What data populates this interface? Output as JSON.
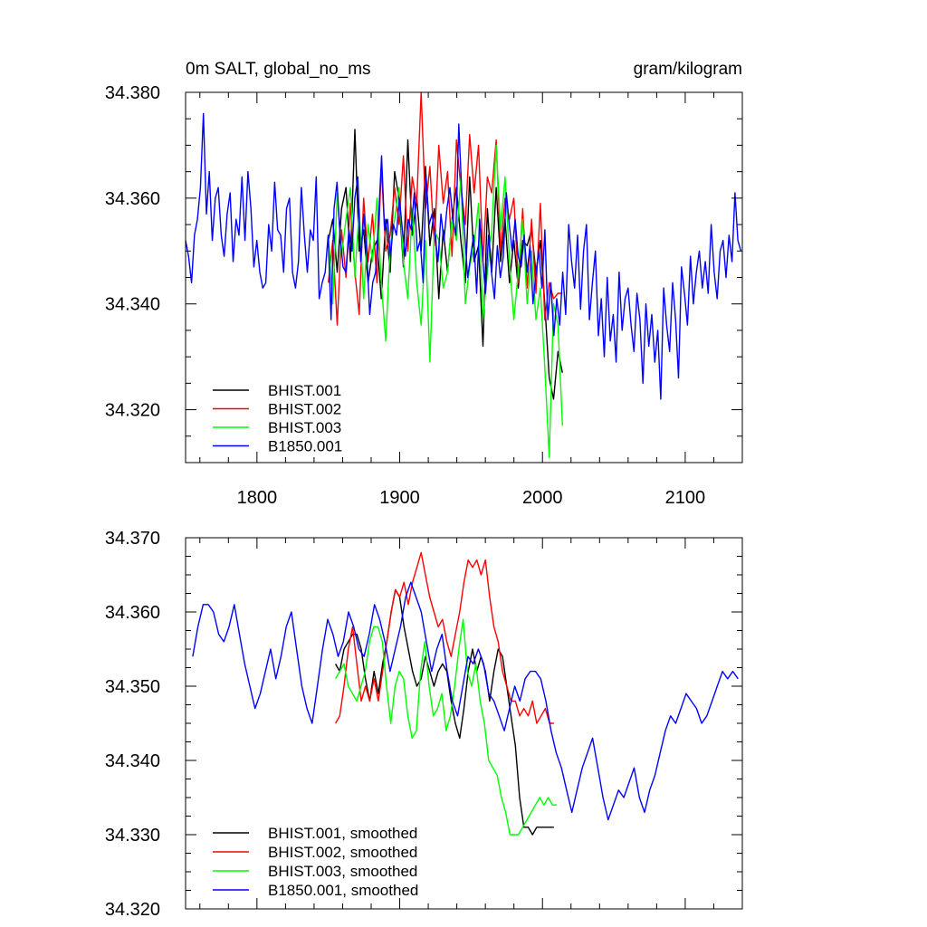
{
  "chart_data": [
    {
      "type": "line",
      "title": "0m SALT, global_no_ms",
      "units": "gram/kilogram",
      "xlim": [
        1750,
        2140
      ],
      "ylim": [
        34.31,
        34.38
      ],
      "xticks": [
        1800,
        1900,
        2000,
        2100
      ],
      "xtick_labels": [
        "1800",
        "1900",
        "2000",
        "2100"
      ],
      "yticks": [
        34.32,
        34.34,
        34.36,
        34.38
      ],
      "ytick_labels": [
        "34.320",
        "34.340",
        "34.360",
        "34.380"
      ],
      "legend_position": "bottom-left",
      "series": [
        {
          "name": "BHIST.001",
          "color": "#000000",
          "x_range": [
            1850,
            2014
          ],
          "step": 4,
          "values": [
            34.352,
            34.356,
            34.346,
            34.358,
            34.362,
            34.348,
            34.373,
            34.35,
            34.354,
            34.344,
            34.35,
            34.352,
            34.341,
            34.356,
            34.346,
            34.365,
            34.36,
            34.347,
            34.371,
            34.353,
            34.36,
            34.35,
            34.366,
            34.351,
            34.358,
            34.341,
            34.354,
            34.346,
            34.356,
            34.362,
            34.352,
            34.344,
            34.364,
            34.348,
            34.351,
            34.332,
            34.358,
            34.346,
            34.362,
            34.348,
            34.356,
            34.344,
            34.352,
            34.343,
            34.352,
            34.351,
            34.354,
            34.346,
            34.352,
            34.34,
            34.326,
            34.322,
            34.331,
            34.327
          ]
        },
        {
          "name": "BHIST.002",
          "color": "#ff0000",
          "x_range": [
            1850,
            2014
          ],
          "step": 4,
          "values": [
            34.344,
            34.352,
            34.336,
            34.354,
            34.345,
            34.359,
            34.346,
            34.338,
            34.36,
            34.348,
            34.357,
            34.344,
            34.366,
            34.35,
            34.353,
            34.362,
            34.355,
            34.368,
            34.35,
            34.364,
            34.359,
            34.38,
            34.358,
            34.366,
            34.351,
            34.37,
            34.359,
            34.365,
            34.349,
            34.371,
            34.362,
            34.355,
            34.372,
            34.361,
            34.37,
            34.348,
            34.364,
            34.361,
            34.371,
            34.35,
            34.36,
            34.356,
            34.36,
            34.344,
            34.358,
            34.343,
            34.356,
            34.342,
            34.359,
            34.337,
            34.344,
            34.341,
            34.342,
            34.342
          ]
        },
        {
          "name": "BHIST.003",
          "color": "#00ff00",
          "x_range": [
            1850,
            2014
          ],
          "step": 4,
          "values": [
            34.353,
            34.34,
            34.361,
            34.349,
            34.356,
            34.362,
            34.345,
            34.358,
            34.341,
            34.355,
            34.348,
            34.36,
            34.344,
            34.333,
            34.351,
            34.356,
            34.362,
            34.348,
            34.341,
            34.358,
            34.344,
            34.336,
            34.352,
            34.329,
            34.354,
            34.352,
            34.343,
            34.346,
            34.356,
            34.352,
            34.364,
            34.34,
            34.347,
            34.351,
            34.359,
            34.337,
            34.346,
            34.354,
            34.37,
            34.354,
            34.364,
            34.348,
            34.337,
            34.346,
            34.356,
            34.34,
            34.35,
            34.337,
            34.343,
            34.328,
            34.311,
            34.34,
            34.336,
            34.317
          ]
        },
        {
          "name": "B1850.001",
          "color": "#0000ff",
          "x_range": [
            1750,
            2139
          ],
          "step": 3,
          "values": [
            34.352,
            34.349,
            34.344,
            34.353,
            34.356,
            34.362,
            34.376,
            34.357,
            34.365,
            34.352,
            34.36,
            34.362,
            34.353,
            34.349,
            34.357,
            34.361,
            34.348,
            34.356,
            34.353,
            34.364,
            34.352,
            34.365,
            34.358,
            34.347,
            34.352,
            34.346,
            34.343,
            34.344,
            34.355,
            34.35,
            34.363,
            34.354,
            34.353,
            34.346,
            34.358,
            34.36,
            34.346,
            34.343,
            34.348,
            34.362,
            34.353,
            34.346,
            34.354,
            34.352,
            34.364,
            34.341,
            34.344,
            34.346,
            34.353,
            34.337,
            34.358,
            34.363,
            34.353,
            34.347,
            34.346,
            34.354,
            34.35,
            34.36,
            34.364,
            34.348,
            34.357,
            34.35,
            34.338,
            34.344,
            34.346,
            34.356,
            34.368,
            34.354,
            34.356,
            34.349,
            34.355,
            34.353,
            34.36,
            34.354,
            34.349,
            34.356,
            34.354,
            34.361,
            34.35,
            34.352,
            34.344,
            34.364,
            34.355,
            34.357,
            34.353,
            34.348,
            34.357,
            34.352,
            34.358,
            34.362,
            34.356,
            34.353,
            34.374,
            34.361,
            34.353,
            34.345,
            34.349,
            34.353,
            34.342,
            34.356,
            34.349,
            34.342,
            34.353,
            34.346,
            34.341,
            34.351,
            34.345,
            34.349,
            34.361,
            34.355,
            34.35,
            34.356,
            34.349,
            34.347,
            34.353,
            34.346,
            34.351,
            34.34,
            34.346,
            34.35,
            34.343,
            34.354,
            34.337,
            34.344,
            34.334,
            34.341,
            34.336,
            34.346,
            34.338,
            34.355,
            34.348,
            34.343,
            34.353,
            34.339,
            34.35,
            34.355,
            34.337,
            34.344,
            34.35,
            34.334,
            34.341,
            34.33,
            34.345,
            34.333,
            34.338,
            34.329,
            34.346,
            34.335,
            34.341,
            34.343,
            34.336,
            34.331,
            34.342,
            34.337,
            34.325,
            34.34,
            34.332,
            34.338,
            34.329,
            34.335,
            34.322,
            34.343,
            34.336,
            34.331,
            34.344,
            34.337,
            34.326,
            34.347,
            34.342,
            34.336,
            34.349,
            34.34,
            34.346,
            34.35,
            34.343,
            34.348,
            34.342,
            34.355,
            34.346,
            34.341,
            34.35,
            34.352,
            34.345,
            34.353,
            34.348,
            34.361,
            34.352,
            34.35
          ]
        }
      ]
    },
    {
      "type": "line",
      "title": "",
      "xlim": [
        1750,
        2140
      ],
      "ylim": [
        34.32,
        34.37
      ],
      "yticks": [
        34.32,
        34.33,
        34.34,
        34.35,
        34.36,
        34.37
      ],
      "ytick_labels": [
        "34.320",
        "34.330",
        "34.340",
        "34.350",
        "34.360",
        "34.370"
      ],
      "legend_position": "bottom-left",
      "series": [
        {
          "name": "BHIST.001, smoothed",
          "color": "#000000",
          "x_range": [
            1855,
            2008
          ],
          "step": 3,
          "values": [
            34.353,
            34.352,
            34.355,
            34.356,
            34.357,
            34.357,
            34.355,
            34.351,
            34.348,
            34.352,
            34.349,
            34.353,
            34.356,
            34.36,
            34.363,
            34.362,
            34.358,
            34.355,
            34.352,
            34.35,
            34.351,
            34.354,
            34.352,
            34.35,
            34.352,
            34.353,
            34.352,
            34.348,
            34.345,
            34.343,
            34.347,
            34.352,
            34.355,
            34.352,
            34.354,
            34.352,
            34.348,
            34.352,
            34.355,
            34.354,
            34.35,
            34.346,
            34.342,
            34.335,
            34.331,
            34.331,
            34.33,
            34.331,
            34.331,
            34.331,
            34.331,
            34.331
          ]
        },
        {
          "name": "BHIST.002, smoothed",
          "color": "#ff0000",
          "x_range": [
            1855,
            2008
          ],
          "step": 3,
          "values": [
            34.345,
            34.346,
            34.35,
            34.355,
            34.358,
            34.353,
            34.348,
            34.35,
            34.348,
            34.351,
            34.348,
            34.352,
            34.356,
            34.36,
            34.363,
            34.362,
            34.364,
            34.361,
            34.364,
            34.366,
            34.368,
            34.365,
            34.362,
            34.36,
            34.358,
            34.359,
            34.356,
            34.354,
            34.357,
            34.36,
            34.364,
            34.367,
            34.366,
            34.367,
            34.365,
            34.367,
            34.362,
            34.358,
            34.356,
            34.352,
            34.35,
            34.348,
            34.348,
            34.346,
            34.347,
            34.346,
            34.348,
            34.345,
            34.346,
            34.347,
            34.345,
            34.345
          ]
        },
        {
          "name": "BHIST.003, smoothed",
          "color": "#00ff00",
          "x_range": [
            1855,
            2010
          ],
          "step": 3,
          "values": [
            34.351,
            34.352,
            34.353,
            34.35,
            34.349,
            34.348,
            34.35,
            34.352,
            34.356,
            34.358,
            34.358,
            34.356,
            34.35,
            34.345,
            34.35,
            34.352,
            34.351,
            34.346,
            34.343,
            34.344,
            34.352,
            34.356,
            34.35,
            34.346,
            34.347,
            34.349,
            34.344,
            34.346,
            34.35,
            34.355,
            34.359,
            34.352,
            34.35,
            34.353,
            34.348,
            34.345,
            34.34,
            34.339,
            34.338,
            34.335,
            34.333,
            34.33,
            34.33,
            34.33,
            34.331,
            34.332,
            34.333,
            34.334,
            34.335,
            34.334,
            34.335,
            34.334,
            34.334
          ]
        },
        {
          "name": "B1850.001, smoothed",
          "color": "#0000ff",
          "x_range": [
            1755,
            2137
          ],
          "step": 3,
          "values": [
            34.354,
            34.358,
            34.361,
            34.361,
            34.36,
            34.357,
            34.356,
            34.358,
            34.361,
            34.357,
            34.353,
            34.35,
            34.347,
            34.349,
            34.352,
            34.355,
            34.351,
            34.354,
            34.358,
            34.36,
            34.355,
            34.35,
            34.347,
            34.345,
            34.35,
            34.355,
            34.359,
            34.357,
            34.354,
            34.356,
            34.36,
            34.358,
            34.355,
            34.354,
            34.357,
            34.361,
            34.359,
            34.356,
            34.352,
            34.355,
            34.358,
            34.362,
            34.364,
            34.362,
            34.36,
            34.356,
            34.352,
            34.355,
            34.357,
            34.352,
            34.348,
            34.346,
            34.35,
            34.354,
            34.353,
            34.355,
            34.353,
            34.349,
            34.348,
            34.346,
            34.344,
            34.347,
            34.35,
            34.348,
            34.351,
            34.352,
            34.352,
            34.351,
            34.348,
            34.344,
            34.341,
            34.339,
            34.336,
            34.333,
            34.336,
            34.339,
            34.341,
            34.343,
            34.339,
            34.335,
            34.332,
            34.334,
            34.336,
            34.335,
            34.337,
            34.339,
            34.335,
            34.333,
            34.336,
            34.338,
            34.341,
            34.344,
            34.346,
            34.345,
            34.347,
            34.349,
            34.348,
            34.347,
            34.345,
            34.346,
            34.348,
            34.35,
            34.352,
            34.351,
            34.352,
            34.351
          ]
        }
      ]
    }
  ]
}
